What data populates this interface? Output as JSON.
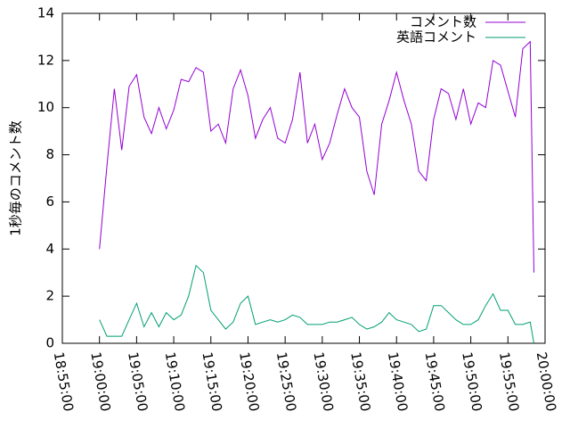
{
  "chart_data": {
    "type": "line",
    "ylabel": "1秒毎のコメント数",
    "x": [
      "19:00:00",
      "19:01:00",
      "19:02:00",
      "19:03:00",
      "19:04:00",
      "19:05:00",
      "19:06:00",
      "19:07:00",
      "19:08:00",
      "19:09:00",
      "19:10:00",
      "19:11:00",
      "19:12:00",
      "19:13:00",
      "19:14:00",
      "19:15:00",
      "19:16:00",
      "19:17:00",
      "19:18:00",
      "19:19:00",
      "19:20:00",
      "19:21:00",
      "19:22:00",
      "19:23:00",
      "19:24:00",
      "19:25:00",
      "19:26:00",
      "19:27:00",
      "19:28:00",
      "19:29:00",
      "19:30:00",
      "19:31:00",
      "19:32:00",
      "19:33:00",
      "19:34:00",
      "19:35:00",
      "19:36:00",
      "19:37:00",
      "19:38:00",
      "19:39:00",
      "19:40:00",
      "19:41:00",
      "19:42:00",
      "19:43:00",
      "19:44:00",
      "19:45:00",
      "19:46:00",
      "19:47:00",
      "19:48:00",
      "19:49:00",
      "19:50:00",
      "19:51:00",
      "19:52:00",
      "19:53:00",
      "19:54:00",
      "19:55:00",
      "19:56:00",
      "19:57:00",
      "19:58:00",
      "19:58:30"
    ],
    "series": [
      {
        "name": "コメント数",
        "color": "#9400d3",
        "values": [
          4.0,
          7.5,
          10.8,
          8.2,
          10.9,
          11.4,
          9.6,
          8.9,
          10.0,
          9.1,
          9.9,
          11.2,
          11.1,
          11.7,
          11.5,
          9.0,
          9.3,
          8.5,
          10.8,
          11.6,
          10.5,
          8.7,
          9.5,
          10.0,
          8.7,
          8.5,
          9.5,
          11.5,
          8.5,
          9.3,
          7.8,
          8.5,
          9.7,
          10.8,
          10.0,
          9.6,
          7.3,
          6.3,
          9.3,
          10.3,
          11.5,
          10.3,
          9.3,
          7.3,
          6.9,
          9.5,
          10.8,
          10.6,
          9.5,
          10.8,
          9.3,
          10.2,
          10.0,
          12.0,
          11.8,
          10.7,
          9.6,
          12.5,
          12.8,
          3.0
        ]
      },
      {
        "name": "英語コメント",
        "color": "#009e73",
        "values": [
          1.0,
          0.3,
          0.3,
          0.3,
          1.0,
          1.7,
          0.7,
          1.3,
          0.7,
          1.3,
          1.0,
          1.2,
          2.0,
          3.3,
          3.0,
          1.4,
          1.0,
          0.6,
          0.9,
          1.7,
          2.0,
          0.8,
          0.9,
          1.0,
          0.9,
          1.0,
          1.2,
          1.1,
          0.8,
          0.8,
          0.8,
          0.9,
          0.9,
          1.0,
          1.1,
          0.8,
          0.6,
          0.7,
          0.9,
          1.3,
          1.0,
          0.9,
          0.8,
          0.5,
          0.6,
          1.6,
          1.6,
          1.3,
          1.0,
          0.8,
          0.8,
          1.0,
          1.6,
          2.1,
          1.4,
          1.4,
          0.8,
          0.8,
          0.9,
          0.0
        ]
      }
    ],
    "xlim": [
      "18:55:00",
      "20:00:00"
    ],
    "xticks": [
      "18:55:00",
      "19:00:00",
      "19:05:00",
      "19:10:00",
      "19:15:00",
      "19:20:00",
      "19:25:00",
      "19:30:00",
      "19:35:00",
      "19:40:00",
      "19:45:00",
      "19:50:00",
      "19:55:00",
      "20:00:00"
    ],
    "ylim": [
      0,
      14
    ],
    "yticks": [
      0,
      2,
      4,
      6,
      8,
      10,
      12,
      14
    ],
    "legend": "upper right"
  }
}
